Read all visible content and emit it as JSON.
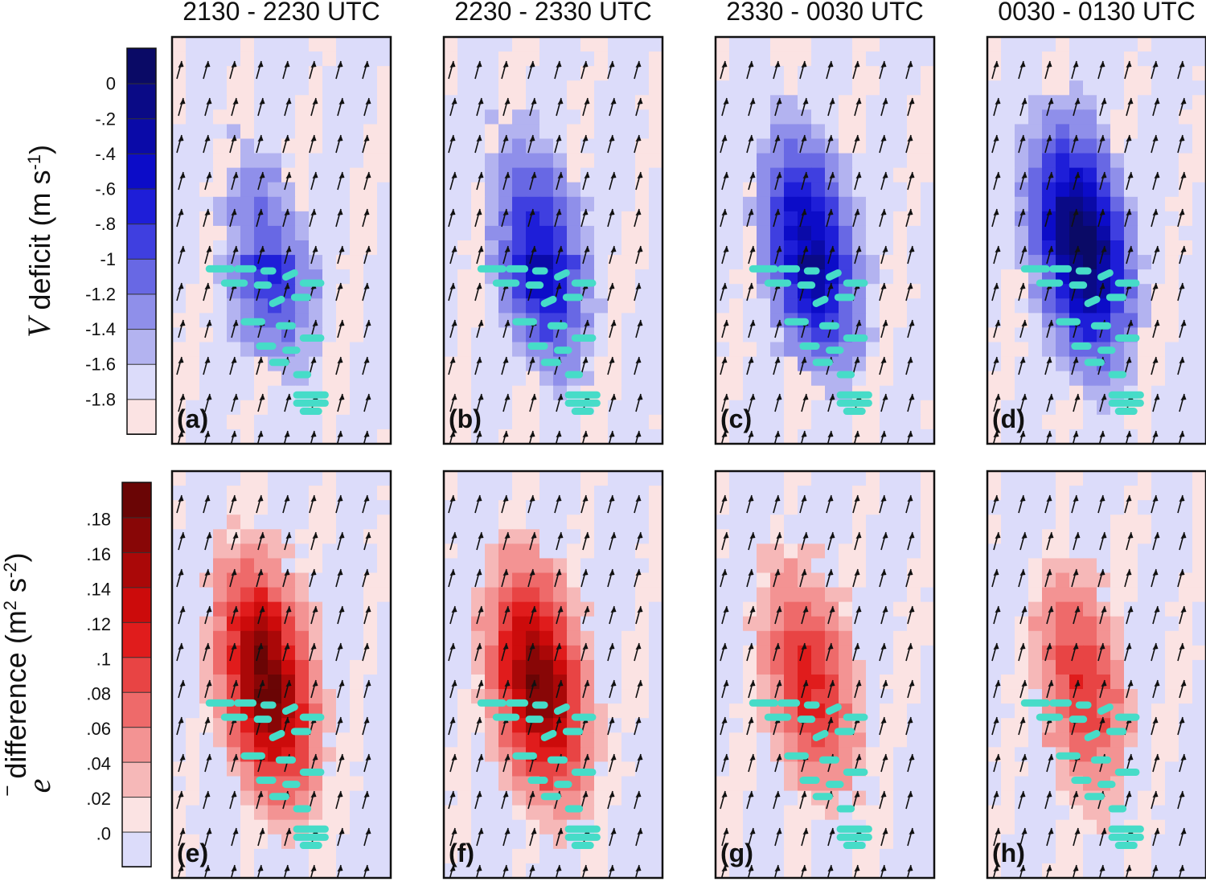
{
  "chart_data": {
    "type": "heatmap",
    "column_titles": [
      "2130 - 2230 UTC",
      "2230 - 2330 UTC",
      "2330 - 0030 UTC",
      "0030 - 0130 UTC"
    ],
    "rows": [
      {
        "ylabel_symbol": "V",
        "ylabel_text": " deficit (m s",
        "ylabel_sup": "-1",
        "ylabel_end": ")",
        "colorbar_ticks": [
          "0",
          "-.2",
          "-.4",
          "-.6",
          "-.8",
          "-1",
          "-1.2",
          "-1.4",
          "-1.6",
          "-1.8"
        ],
        "colorbar_colors": [
          "#fbe3e3",
          "#dcdcfa",
          "#b3b3f0",
          "#8f8fea",
          "#6868e4",
          "#3f3fe0",
          "#1e1ed8",
          "#0c0cc8",
          "#0a0aa8",
          "#0a0a86",
          "#0a0a66"
        ],
        "panels": [
          {
            "label": "(a)",
            "intensity": 0.55
          },
          {
            "label": "(b)",
            "intensity": 0.75
          },
          {
            "label": "(c)",
            "intensity": 0.85
          },
          {
            "label": "(d)",
            "intensity": 1.0
          }
        ]
      },
      {
        "ylabel_symbol": "e",
        "ylabel_text": " difference (m",
        "ylabel_sup": "2",
        "ylabel_mid": " s",
        "ylabel_sup2": "-2",
        "ylabel_end": ")",
        "colorbar_ticks": [
          ".0",
          ".02",
          ".04",
          ".06",
          ".08",
          ".1",
          ".12",
          ".14",
          ".16",
          ".18"
        ],
        "colorbar_colors": [
          "#dcdcfa",
          "#fbe3e3",
          "#f6b8b8",
          "#f39393",
          "#ee6a6a",
          "#e84444",
          "#e01c1c",
          "#cc0b0b",
          "#aa0808",
          "#880606",
          "#6a0505"
        ],
        "panels": [
          {
            "label": "(e)",
            "intensity": 1.0
          },
          {
            "label": "(f)",
            "intensity": 0.95
          },
          {
            "label": "(g)",
            "intensity": 0.55
          },
          {
            "label": "(h)",
            "intensity": 0.5
          }
        ]
      }
    ],
    "wind_arrows": "northward",
    "turbine_marker_color": "#46dcc8"
  }
}
